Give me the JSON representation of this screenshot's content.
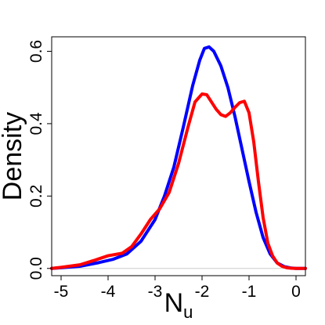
{
  "chart_data": {
    "type": "line",
    "title": "",
    "xlabel": "N",
    "xlabel_subscript": "u",
    "ylabel": "Density",
    "xlim": [
      -5.2,
      0.2
    ],
    "ylim": [
      -0.02,
      0.64
    ],
    "x_ticks": [
      -5,
      -4,
      -3,
      -2,
      -1,
      0
    ],
    "x_tick_labels": [
      "-5",
      "-4",
      "-3",
      "-2",
      "-1",
      "0"
    ],
    "y_ticks": [
      0.0,
      0.2,
      0.4,
      0.6
    ],
    "y_tick_labels": [
      "0.0",
      "0.2",
      "0.4",
      "0.6"
    ],
    "grid": false,
    "legend": "none",
    "baseline": 0,
    "baseline_color": "#cccccc",
    "series": [
      {
        "color": "#0000ff",
        "x": [
          -5.2,
          -5.0,
          -4.6,
          -4.2,
          -3.9,
          -3.6,
          -3.3,
          -3.0,
          -2.8,
          -2.6,
          -2.4,
          -2.2,
          -2.05,
          -1.95,
          -1.85,
          -1.75,
          -1.6,
          -1.45,
          -1.3,
          -1.15,
          -1.0,
          -0.85,
          -0.7,
          -0.55,
          -0.4,
          -0.25,
          -0.1,
          0.0,
          0.2
        ],
        "y": [
          0.0,
          0.002,
          0.006,
          0.016,
          0.025,
          0.04,
          0.075,
          0.135,
          0.2,
          0.28,
          0.39,
          0.505,
          0.575,
          0.608,
          0.612,
          0.6,
          0.56,
          0.5,
          0.42,
          0.33,
          0.24,
          0.155,
          0.085,
          0.04,
          0.015,
          0.005,
          0.001,
          0.0,
          0.0
        ]
      },
      {
        "color": "#ff0000",
        "x": [
          -5.2,
          -5.0,
          -4.6,
          -4.3,
          -4.0,
          -3.7,
          -3.5,
          -3.3,
          -3.1,
          -2.9,
          -2.7,
          -2.5,
          -2.3,
          -2.15,
          -2.0,
          -1.9,
          -1.8,
          -1.7,
          -1.6,
          -1.5,
          -1.4,
          -1.3,
          -1.2,
          -1.1,
          -1.0,
          -0.9,
          -0.8,
          -0.7,
          -0.6,
          -0.5,
          -0.4,
          -0.3,
          -0.2,
          -0.1,
          0.0,
          0.2
        ],
        "y": [
          0.0,
          0.003,
          0.01,
          0.022,
          0.035,
          0.042,
          0.06,
          0.095,
          0.135,
          0.165,
          0.21,
          0.29,
          0.39,
          0.46,
          0.482,
          0.48,
          0.46,
          0.44,
          0.425,
          0.42,
          0.43,
          0.445,
          0.458,
          0.462,
          0.43,
          0.35,
          0.24,
          0.14,
          0.07,
          0.035,
          0.015,
          0.006,
          0.002,
          0.0005,
          0.0,
          0.0
        ]
      }
    ]
  }
}
